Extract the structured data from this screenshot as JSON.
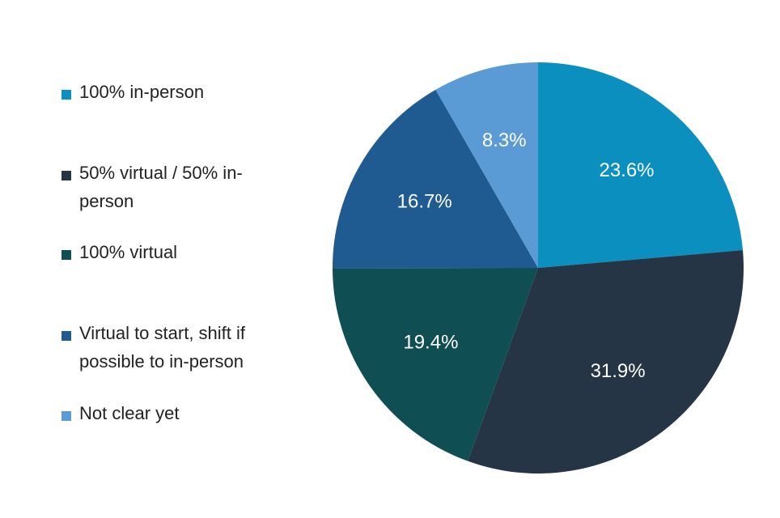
{
  "chart_data": {
    "type": "pie",
    "title": "",
    "categories": [
      "100% in-person",
      "50% virtual / 50% in-person",
      "100% virtual",
      "Virtual to start, shift if possible to in-person",
      "Not clear yet"
    ],
    "values": [
      23.6,
      31.9,
      19.4,
      16.7,
      8.3
    ],
    "labels": [
      "23.6%",
      "31.9%",
      "19.4%",
      "16.7%",
      "8.3%"
    ],
    "colors": [
      "#0b8fbf",
      "#263545",
      "#0f4f54",
      "#1f5a91",
      "#5b9bd5"
    ],
    "start_angle_deg": 0,
    "direction": "clockwise",
    "legend_position": "left"
  },
  "legend": [
    {
      "label": "100% in-person",
      "color": "#0b8fbf"
    },
    {
      "label": "50% virtual / 50% in-person",
      "color": "#263545"
    },
    {
      "label": "100% virtual",
      "color": "#0f4f54"
    },
    {
      "label": "Virtual to start, shift if possible to in-person",
      "color": "#1f5a91"
    },
    {
      "label": "Not clear yet",
      "color": "#5b9bd5"
    }
  ]
}
